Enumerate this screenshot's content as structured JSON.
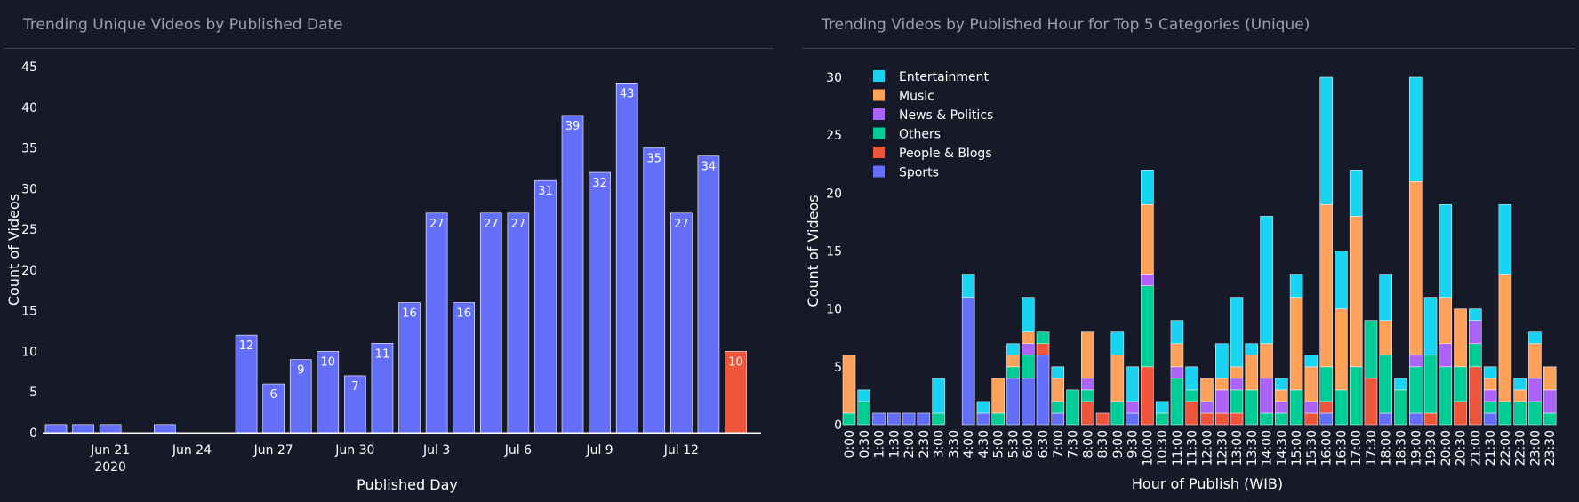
{
  "left_chart": {
    "title": "Trending Unique Videos by Published Date",
    "chart_data": {
      "type": "bar",
      "title": "Trending Unique Videos by Published Date",
      "xlabel": "Published Day",
      "ylabel": "Count of Videos",
      "x": [
        "2020-06-19",
        "2020-06-20",
        "2020-06-21",
        "2020-06-22",
        "2020-06-23",
        "2020-06-24",
        "2020-06-25",
        "2020-06-26",
        "2020-06-27",
        "2020-06-28",
        "2020-06-29",
        "2020-06-30",
        "2020-07-01",
        "2020-07-02",
        "2020-07-03",
        "2020-07-04",
        "2020-07-05",
        "2020-07-06",
        "2020-07-07",
        "2020-07-08",
        "2020-07-09",
        "2020-07-10",
        "2020-07-11",
        "2020-07-12",
        "2020-07-13",
        "2020-07-14"
      ],
      "values": [
        1,
        1,
        1,
        0,
        1,
        0,
        0,
        12,
        6,
        9,
        10,
        7,
        11,
        16,
        27,
        16,
        27,
        27,
        31,
        39,
        32,
        43,
        35,
        27,
        34,
        10
      ],
      "highlight_last": true,
      "colors": {
        "default": "#636efa",
        "highlight": "#ef553b"
      },
      "ylim": [
        0,
        45
      ],
      "yticks": [
        0,
        5,
        10,
        15,
        20,
        25,
        30,
        35,
        40,
        45
      ],
      "xticks": [
        {
          "x": "2020-06-21",
          "label": "Jun 21",
          "sublabel": "2020"
        },
        {
          "x": "2020-06-24",
          "label": "Jun 24"
        },
        {
          "x": "2020-06-27",
          "label": "Jun 27"
        },
        {
          "x": "2020-06-30",
          "label": "Jun 30"
        },
        {
          "x": "2020-07-03",
          "label": "Jul 3"
        },
        {
          "x": "2020-07-06",
          "label": "Jul 6"
        },
        {
          "x": "2020-07-09",
          "label": "Jul 9"
        },
        {
          "x": "2020-07-12",
          "label": "Jul 12"
        }
      ]
    }
  },
  "right_chart": {
    "title": "Trending Videos by Published Hour for Top 5 Categories (Unique)",
    "chart_data": {
      "type": "bar",
      "stacked": true,
      "title": "Trending Videos by Published Hour for Top 5 Categories (Unique)",
      "xlabel": "Hour of Publish (WIB)",
      "ylabel": "Count of Videos",
      "categories": [
        "0:00",
        "0:30",
        "1:00",
        "1:30",
        "2:00",
        "2:30",
        "3:00",
        "3:30",
        "4:00",
        "4:30",
        "5:00",
        "5:30",
        "6:00",
        "6:30",
        "7:00",
        "7:30",
        "8:00",
        "8:30",
        "9:00",
        "9:30",
        "10:00",
        "10:30",
        "11:00",
        "11:30",
        "12:00",
        "12:30",
        "13:00",
        "13:30",
        "14:00",
        "14:30",
        "15:00",
        "15:30",
        "16:00",
        "16:30",
        "17:00",
        "17:30",
        "18:00",
        "18:30",
        "19:00",
        "19:30",
        "20:00",
        "20:30",
        "21:00",
        "21:30",
        "22:00",
        "22:30",
        "23:00",
        "23:30"
      ],
      "series": [
        {
          "name": "Sports",
          "color": "#636efa",
          "values": [
            0,
            0,
            1,
            1,
            1,
            1,
            0,
            0,
            11,
            1,
            0,
            4,
            4,
            6,
            1,
            0,
            0,
            0,
            0,
            1,
            0,
            0,
            0,
            0,
            0,
            0,
            0,
            0,
            0,
            0,
            0,
            0,
            1,
            0,
            0,
            0,
            1,
            0,
            1,
            0,
            0,
            0,
            0,
            1,
            0,
            0,
            0,
            0
          ]
        },
        {
          "name": "People & Blogs",
          "color": "#ef553b",
          "values": [
            0,
            0,
            0,
            0,
            0,
            0,
            0,
            0,
            0,
            0,
            0,
            0,
            0,
            1,
            0,
            0,
            2,
            1,
            0,
            0,
            5,
            0,
            0,
            2,
            1,
            1,
            1,
            0,
            0,
            0,
            0,
            1,
            1,
            0,
            0,
            4,
            0,
            0,
            0,
            1,
            0,
            2,
            5,
            0,
            0,
            0,
            0,
            0
          ]
        },
        {
          "name": "Others",
          "color": "#00cc96",
          "values": [
            1,
            2,
            0,
            0,
            0,
            0,
            1,
            0,
            0,
            0,
            1,
            1,
            2,
            1,
            1,
            3,
            1,
            0,
            2,
            0,
            7,
            1,
            4,
            1,
            0,
            0,
            2,
            3,
            1,
            1,
            3,
            0,
            3,
            3,
            5,
            5,
            5,
            3,
            4,
            5,
            5,
            3,
            2,
            1,
            2,
            2,
            2,
            1
          ]
        },
        {
          "name": "News & Politics",
          "color": "#ab63fa",
          "values": [
            0,
            0,
            0,
            0,
            0,
            0,
            0,
            0,
            0,
            0,
            0,
            0,
            1,
            0,
            0,
            0,
            1,
            0,
            0,
            1,
            1,
            0,
            1,
            0,
            1,
            2,
            1,
            0,
            3,
            1,
            0,
            1,
            0,
            0,
            0,
            0,
            0,
            0,
            1,
            0,
            2,
            0,
            2,
            1,
            0,
            0,
            2,
            2
          ]
        },
        {
          "name": "Music",
          "color": "#ffa15a",
          "values": [
            5,
            0,
            0,
            0,
            0,
            0,
            0,
            0,
            0,
            0,
            3,
            1,
            1,
            0,
            2,
            0,
            4,
            0,
            4,
            0,
            6,
            0,
            2,
            0,
            2,
            1,
            1,
            3,
            3,
            1,
            8,
            3,
            14,
            7,
            13,
            0,
            3,
            0,
            15,
            0,
            4,
            5,
            0,
            1,
            11,
            1,
            3,
            2
          ]
        },
        {
          "name": "Entertainment",
          "color": "#19d3f3",
          "values": [
            0,
            1,
            0,
            0,
            0,
            0,
            3,
            0,
            2,
            1,
            0,
            1,
            3,
            0,
            1,
            0,
            0,
            0,
            2,
            3,
            3,
            1,
            2,
            2,
            0,
            3,
            6,
            1,
            11,
            1,
            2,
            1,
            11,
            5,
            4,
            0,
            4,
            1,
            9,
            5,
            8,
            0,
            1,
            1,
            6,
            1,
            1,
            0
          ]
        }
      ],
      "ylim": [
        0,
        30
      ],
      "yticks": [
        0,
        5,
        10,
        15,
        20,
        25,
        30
      ],
      "legend_position": "top-left"
    }
  }
}
